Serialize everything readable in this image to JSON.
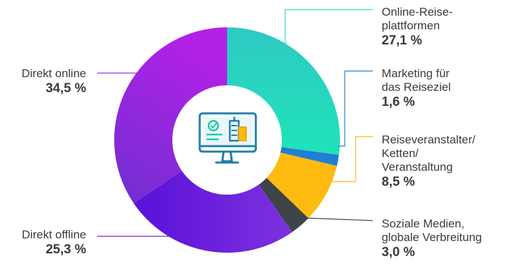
{
  "chart_data": {
    "type": "pie",
    "variant": "donut",
    "center_icon": "computer-monitor-buildings-icon",
    "slices": [
      {
        "label": "Online-Reise-\nplattformen",
        "value": 27.1,
        "value_label": "27,1 %",
        "color": "#1fd9be"
      },
      {
        "label": "Marketing für\ndas Reiseziel",
        "value": 1.6,
        "value_label": "1,6 %",
        "color": "#1f7fd1"
      },
      {
        "label": "Reiseveranstalter/\nKetten/\nVeranstaltung",
        "value": 8.5,
        "value_label": "8,5 %",
        "color": "#fdbb11"
      },
      {
        "label": "Soziale Medien,\nglobale Verbreitung",
        "value": 3.0,
        "value_label": "3,0 %",
        "color": "#3e4447"
      },
      {
        "label": "Direkt offline",
        "value": 25.3,
        "value_label": "25,3 %",
        "color": "#6a1bdc"
      },
      {
        "label": "Direkt online",
        "value": 34.5,
        "value_label": "34,5 %",
        "color": "#9b2ee0"
      }
    ]
  }
}
